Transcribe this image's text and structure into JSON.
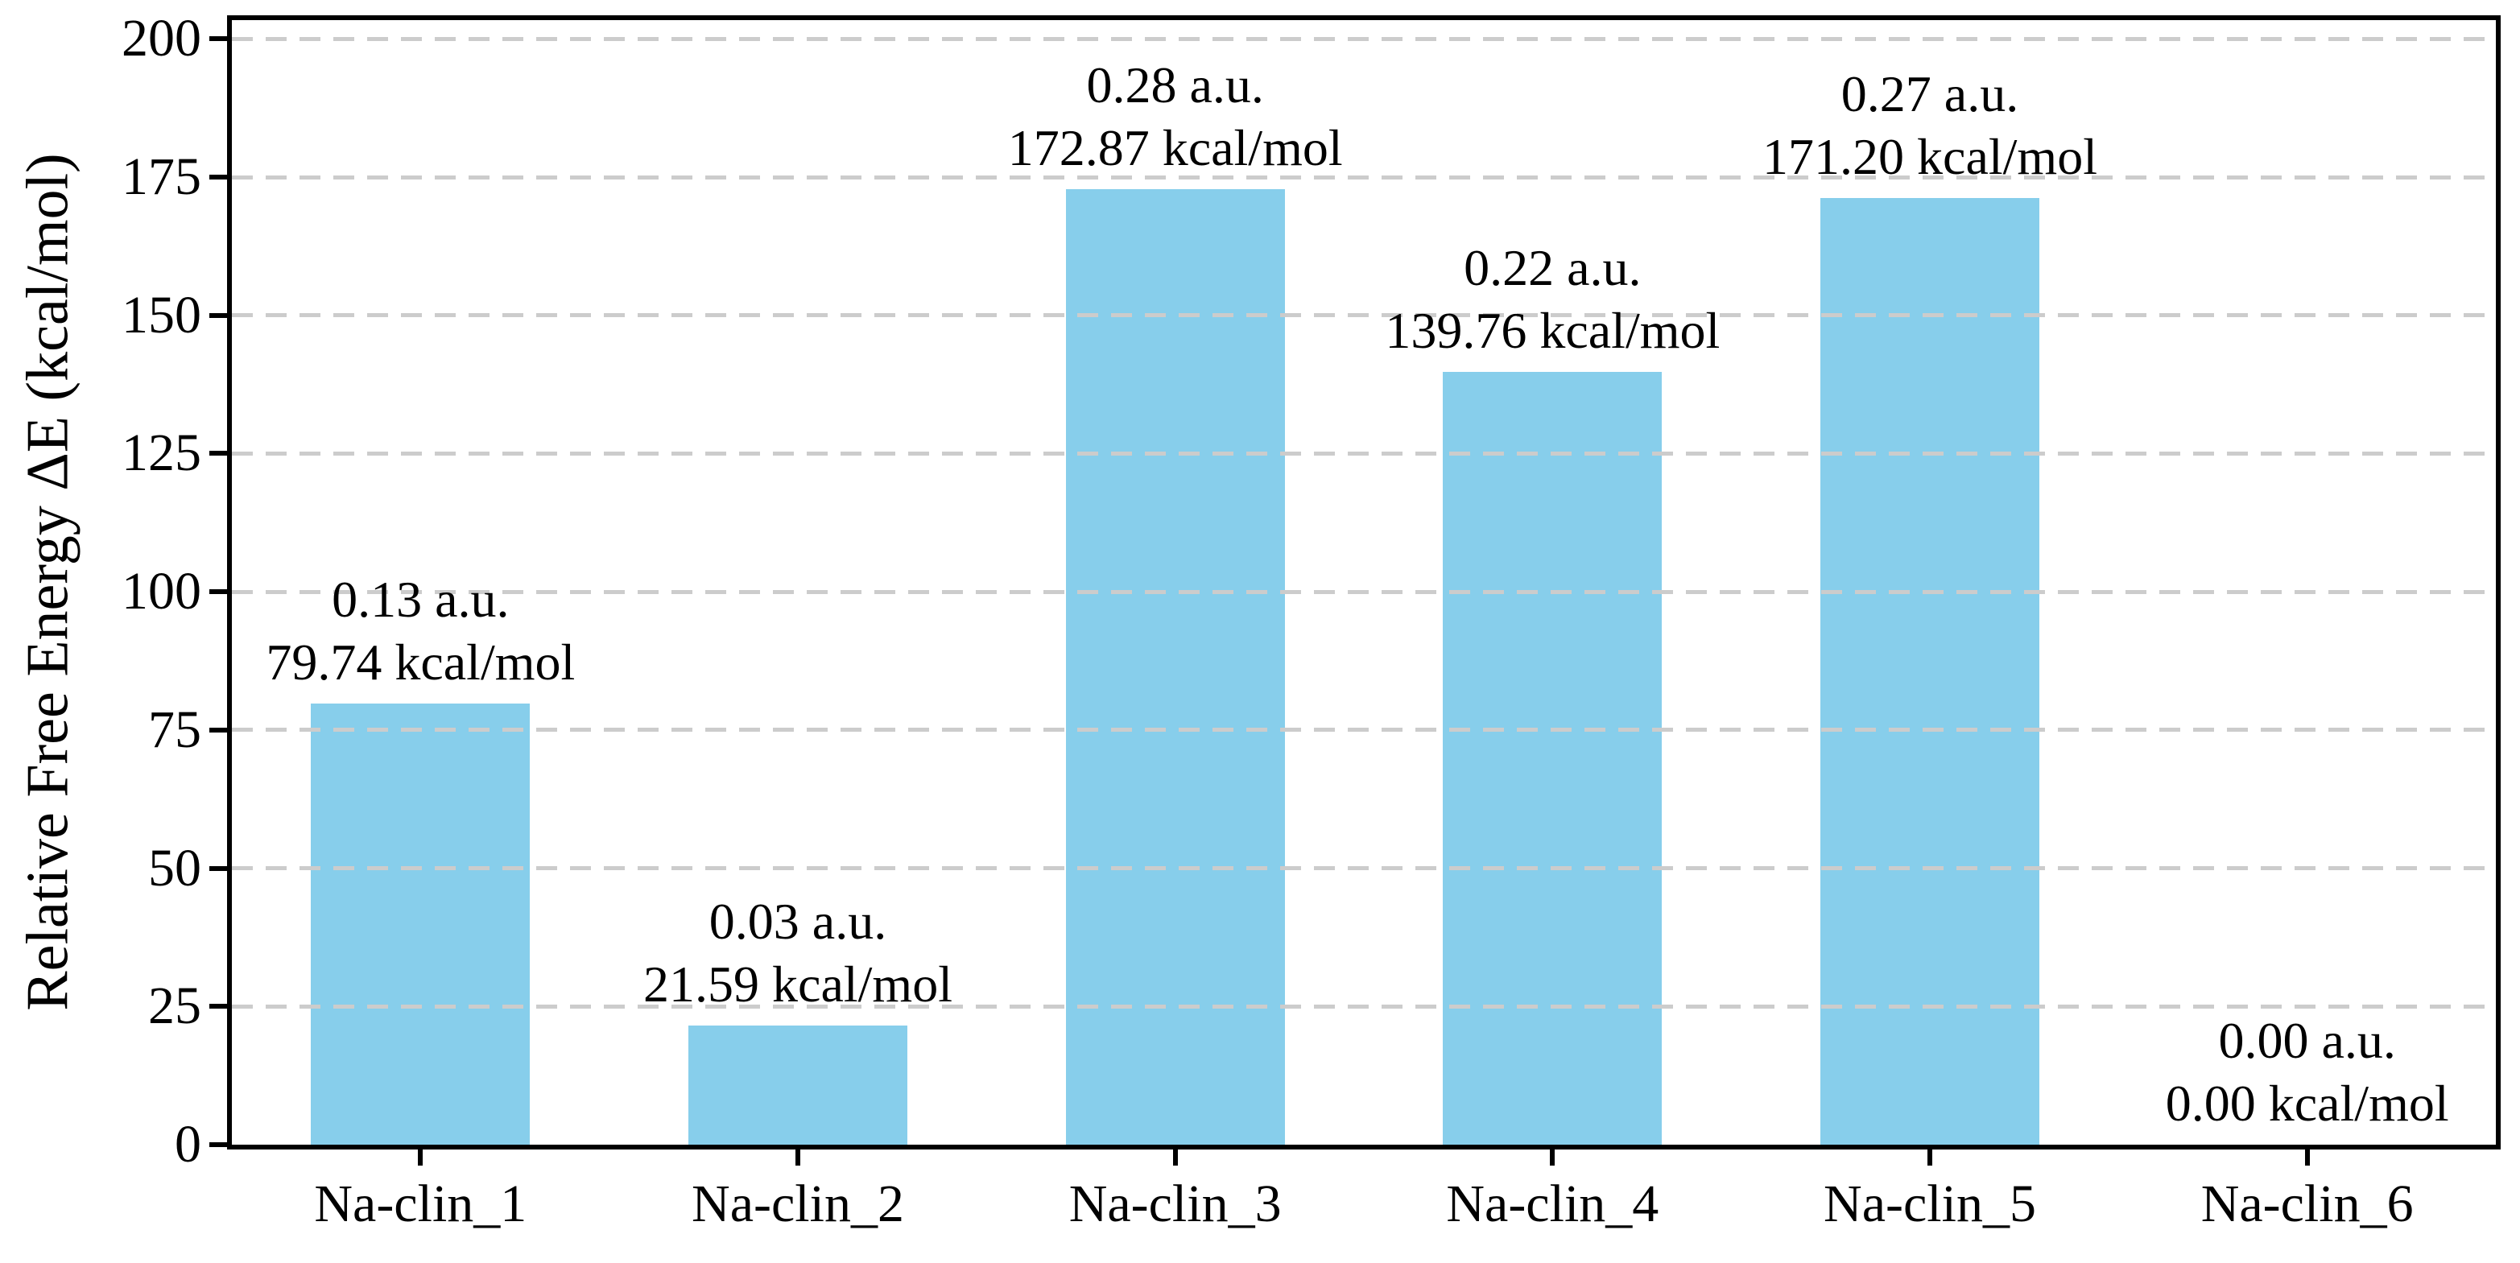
{
  "chart_data": {
    "type": "bar",
    "title": "",
    "xlabel": "",
    "ylabel": "Relative Free Energy ΔE (kcal/mol)",
    "categories": [
      "Na-clin_1",
      "Na-clin_2",
      "Na-clin_3",
      "Na-clin_4",
      "Na-clin_5",
      "Na-clin_6"
    ],
    "values_kcal_per_mol": [
      79.74,
      21.59,
      172.87,
      139.76,
      171.2,
      0.0
    ],
    "values_au": [
      0.13,
      0.03,
      0.28,
      0.22,
      0.27,
      0.0
    ],
    "annotations": [
      {
        "line1": "0.13 a.u.",
        "line2": "79.74 kcal/mol"
      },
      {
        "line1": "0.03 a.u.",
        "line2": "21.59 kcal/mol"
      },
      {
        "line1": "0.28 a.u.",
        "line2": "172.87 kcal/mol"
      },
      {
        "line1": "0.22 a.u.",
        "line2": "139.76 kcal/mol"
      },
      {
        "line1": "0.27 a.u.",
        "line2": "171.20 kcal/mol"
      },
      {
        "line1": "0.00 a.u.",
        "line2": "0.00 kcal/mol"
      }
    ],
    "y_ticks": [
      0,
      25,
      50,
      75,
      100,
      125,
      150,
      175,
      200
    ],
    "ylim": [
      0,
      200
    ],
    "grid": "horizontal dashed gridlines at every y tick, drawn above bars",
    "legend_position": "none",
    "bar_color": "#87CEEB",
    "grid_color": "#cccccc",
    "axis_color": "#000000",
    "text_color": "#000000"
  }
}
